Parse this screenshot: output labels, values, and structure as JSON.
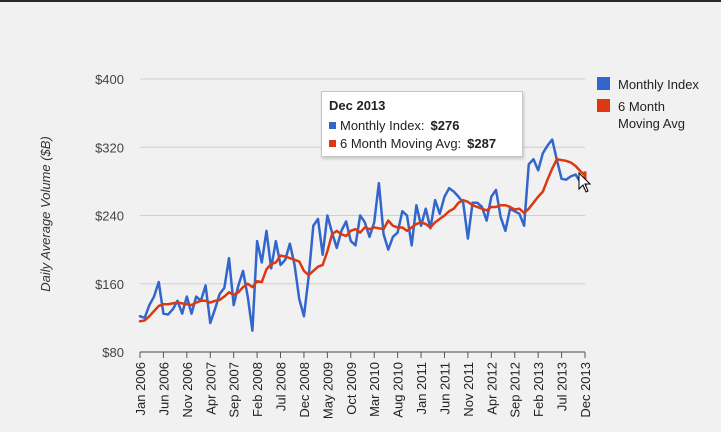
{
  "chart_data": {
    "type": "line",
    "title": "",
    "xlabel": "",
    "ylabel": "Daily Average Volume ($B)",
    "ylim": [
      80,
      400
    ],
    "yticks": [
      80,
      160,
      240,
      320,
      400
    ],
    "ytick_labels": [
      "$80",
      "$160",
      "$240",
      "$320",
      "$400"
    ],
    "x_range": [
      0,
      95
    ],
    "xticks": [
      {
        "label": "Jan 2006",
        "index": 0
      },
      {
        "label": "Jun 2006",
        "index": 5
      },
      {
        "label": "Nov 2006",
        "index": 10
      },
      {
        "label": "Apr 2007",
        "index": 15
      },
      {
        "label": "Sep 2007",
        "index": 20
      },
      {
        "label": "Feb 2008",
        "index": 25
      },
      {
        "label": "Jul 2008",
        "index": 30
      },
      {
        "label": "Dec 2008",
        "index": 35
      },
      {
        "label": "May 2009",
        "index": 40
      },
      {
        "label": "Oct 2009",
        "index": 45
      },
      {
        "label": "Mar 2010",
        "index": 50
      },
      {
        "label": "Aug 2010",
        "index": 55
      },
      {
        "label": "Jan 2011",
        "index": 60
      },
      {
        "label": "Jun 2011",
        "index": 65
      },
      {
        "label": "Nov 2011",
        "index": 70
      },
      {
        "label": "Apr 2012",
        "index": 75
      },
      {
        "label": "Sep 2012",
        "index": 80
      },
      {
        "label": "Feb 2013",
        "index": 85
      },
      {
        "label": "Jul 2013",
        "index": 90
      },
      {
        "label": "Dec 2013",
        "index": 95
      }
    ],
    "series": [
      {
        "name": "Monthly Index",
        "color": "#3366cc",
        "values": [
          122,
          120,
          135,
          145,
          162,
          125,
          124,
          130,
          140,
          125,
          145,
          125,
          145,
          140,
          158,
          114,
          130,
          148,
          155,
          190,
          135,
          158,
          175,
          145,
          105,
          210,
          185,
          222,
          178,
          210,
          182,
          188,
          207,
          182,
          142,
          122,
          168,
          228,
          236,
          194,
          240,
          220,
          202,
          222,
          233,
          210,
          205,
          240,
          232,
          215,
          232,
          278,
          218,
          200,
          215,
          220,
          245,
          240,
          205,
          252,
          228,
          248,
          225,
          258,
          242,
          262,
          272,
          268,
          262,
          255,
          213,
          255,
          255,
          250,
          234,
          262,
          270,
          238,
          222,
          248,
          245,
          242,
          228,
          300,
          306,
          293,
          313,
          322,
          329,
          305,
          283,
          282,
          286,
          288,
          279,
          276
        ]
      },
      {
        "name": "6 Month Moving Avg",
        "color": "#dc3912",
        "values": [
          116,
          117,
          122,
          128,
          134,
          136,
          136,
          137,
          138,
          137,
          136,
          135,
          138,
          140,
          140,
          138,
          140,
          141,
          145,
          150,
          147,
          150,
          156,
          160,
          156,
          163,
          162,
          177,
          183,
          185,
          193,
          192,
          190,
          188,
          186,
          175,
          170,
          175,
          180,
          182,
          198,
          218,
          222,
          218,
          216,
          222,
          224,
          220,
          226,
          224,
          226,
          225,
          224,
          234,
          228,
          226,
          226,
          222,
          226,
          230,
          232,
          230,
          226,
          232,
          236,
          240,
          245,
          248,
          255,
          258,
          256,
          252,
          250,
          248,
          246,
          250,
          250,
          252,
          252,
          250,
          247,
          248,
          243,
          248,
          255,
          262,
          268,
          282,
          295,
          306,
          305,
          304,
          302,
          298,
          292,
          287
        ]
      }
    ],
    "legend": [
      {
        "label_lines": [
          "Monthly Index"
        ],
        "color": "#3366cc"
      },
      {
        "label_lines": [
          "6 Month",
          "Moving Avg"
        ],
        "color": "#dc3912"
      }
    ],
    "legend_position": "right",
    "grid": true
  },
  "tooltip": {
    "title": "Dec 2013",
    "rows": [
      {
        "label": "Monthly Index:",
        "value": "$276",
        "color": "#3366cc"
      },
      {
        "label": "6 Month Moving Avg:",
        "value": "$287",
        "color": "#dc3912"
      }
    ]
  }
}
